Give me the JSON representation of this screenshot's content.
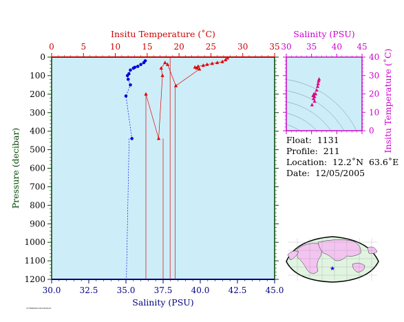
{
  "chart_data": [
    {
      "type": "line",
      "title": "",
      "x_top": {
        "label": "Insitu Temperature (˚C)",
        "range": [
          0,
          35
        ],
        "ticks": [
          0,
          5,
          10,
          15,
          20,
          25,
          30,
          35
        ],
        "color": "#cc0000"
      },
      "x_bottom": {
        "label": "Salinity (PSU)",
        "range": [
          30.0,
          45.0
        ],
        "ticks": [
          "30.0",
          "32.5",
          "35.0",
          "37.5",
          "40.0",
          "42.5",
          "45.0"
        ],
        "color": "#000080"
      },
      "y": {
        "label": "Pressure (decibar)",
        "range": [
          0,
          1200
        ],
        "inverted": true,
        "ticks": [
          0,
          100,
          200,
          300,
          400,
          500,
          600,
          700,
          800,
          900,
          1000,
          1100,
          1200
        ],
        "color": "#004400"
      },
      "grid": false,
      "series": [
        {
          "color": "#e00000",
          "marker": "triangle",
          "axis": "top",
          "x": [
            27.6,
            27.3,
            26.8,
            26.0,
            25.2,
            24.4,
            23.8,
            23.0,
            22.5,
            22.8,
            23.2,
            19.5,
            18.2,
            17.8,
            17.2,
            17.4,
            16.8,
            14.8
          ],
          "y": [
            5,
            15,
            25,
            30,
            35,
            40,
            45,
            50,
            55,
            60,
            65,
            155,
            40,
            30,
            60,
            100,
            440,
            200
          ]
        },
        {
          "color": "#0000dd",
          "marker": "circle",
          "axis": "bottom",
          "x": [
            36.3,
            36.2,
            36.0,
            35.8,
            35.6,
            35.5,
            35.3,
            35.2,
            35.1,
            35.15,
            35.3,
            35.0,
            35.4
          ],
          "y": [
            20,
            30,
            40,
            50,
            55,
            60,
            70,
            90,
            100,
            120,
            150,
            210,
            440
          ]
        }
      ]
    },
    {
      "type": "scatter",
      "x_label": "Salinity (PSU)",
      "y_label": "Insitu Temperature (˚C)",
      "x_range": [
        30,
        45
      ],
      "x_ticks": [
        30,
        35,
        40,
        45
      ],
      "y_range": [
        0,
        40
      ],
      "y_ticks": [
        0,
        10,
        20,
        30,
        40
      ],
      "color": "#e00080",
      "x": [
        36.5,
        36.4,
        36.3,
        36.2,
        36.0,
        35.8,
        35.6,
        35.4,
        35.3,
        35.5,
        35.6,
        35.1
      ],
      "y": [
        28,
        27,
        25.5,
        24,
        22,
        20,
        18.5,
        17.5,
        19,
        20,
        16,
        14
      ]
    }
  ],
  "info": {
    "float": "Float:  1131",
    "profile": "Profile:  211",
    "location": "Location:  12.2˚N  63.6˚E",
    "date": "Date:  12/05/2005"
  },
  "footer_note": "1733001611311010121"
}
